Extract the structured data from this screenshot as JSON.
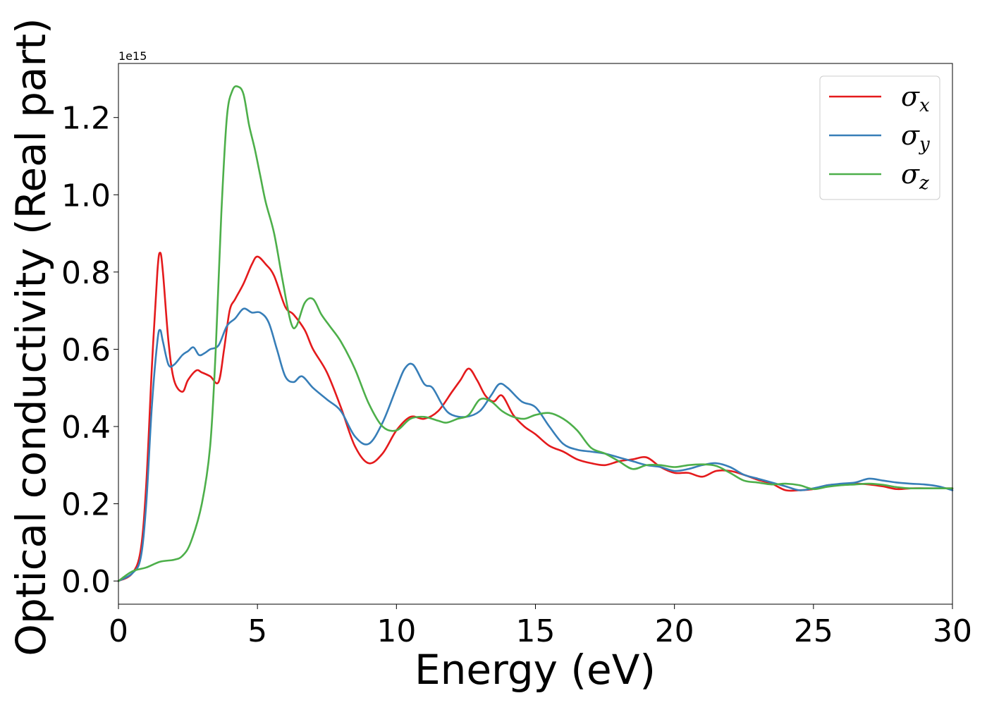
{
  "chart_data": {
    "type": "line",
    "title": "",
    "xlabel": "Energy (eV)",
    "ylabel": "Optical conductivity (Real part)",
    "y_offset_label": "1e15",
    "xlim": [
      0,
      30
    ],
    "ylim": [
      -0.06,
      1.34
    ],
    "xticks": [
      0,
      5,
      10,
      15,
      20,
      25,
      30
    ],
    "xtick_labels": [
      "0",
      "5",
      "10",
      "15",
      "20",
      "25",
      "30"
    ],
    "yticks": [
      0.0,
      0.2,
      0.4,
      0.6,
      0.8,
      1.0,
      1.2
    ],
    "ytick_labels": [
      "0.0",
      "0.2",
      "0.4",
      "0.6",
      "0.8",
      "1.0",
      "1.2"
    ],
    "grid": false,
    "legend_position": "top-right",
    "series": [
      {
        "name": "σx",
        "symbol": "σ",
        "subscript": "x",
        "color": "#e41a1c",
        "x": [
          0,
          0.5,
          0.8,
          1.0,
          1.2,
          1.4,
          1.5,
          1.6,
          1.8,
          2.0,
          2.3,
          2.5,
          2.8,
          3.0,
          3.3,
          3.6,
          3.8,
          4.0,
          4.2,
          4.5,
          4.8,
          5.0,
          5.3,
          5.6,
          6.0,
          6.3,
          6.7,
          7.0,
          7.5,
          8.0,
          8.5,
          9.0,
          9.5,
          10.0,
          10.5,
          11.0,
          11.5,
          12.0,
          12.3,
          12.6,
          12.9,
          13.2,
          13.5,
          13.8,
          14.2,
          14.6,
          15.0,
          15.5,
          16.0,
          16.5,
          17.0,
          17.5,
          18.0,
          18.5,
          19.0,
          19.5,
          20.0,
          20.5,
          21.0,
          21.5,
          22.0,
          22.5,
          23.0,
          23.5,
          24.0,
          24.5,
          25.0,
          25.5,
          26.0,
          26.5,
          27.0,
          27.5,
          28.0,
          28.5,
          29.0,
          29.5,
          30.0
        ],
        "y": [
          0,
          0.02,
          0.08,
          0.25,
          0.55,
          0.8,
          0.85,
          0.8,
          0.62,
          0.52,
          0.49,
          0.52,
          0.545,
          0.54,
          0.53,
          0.515,
          0.6,
          0.7,
          0.73,
          0.77,
          0.82,
          0.84,
          0.82,
          0.79,
          0.71,
          0.69,
          0.65,
          0.6,
          0.54,
          0.45,
          0.35,
          0.305,
          0.33,
          0.39,
          0.425,
          0.42,
          0.44,
          0.49,
          0.52,
          0.55,
          0.52,
          0.48,
          0.465,
          0.48,
          0.43,
          0.4,
          0.38,
          0.35,
          0.335,
          0.315,
          0.305,
          0.3,
          0.31,
          0.315,
          0.32,
          0.295,
          0.28,
          0.28,
          0.27,
          0.285,
          0.285,
          0.275,
          0.262,
          0.252,
          0.235,
          0.235,
          0.238,
          0.248,
          0.25,
          0.252,
          0.25,
          0.245,
          0.238,
          0.24,
          0.24,
          0.24,
          0.24
        ]
      },
      {
        "name": "σy",
        "symbol": "σ",
        "subscript": "y",
        "color": "#377eb8",
        "x": [
          0,
          0.5,
          0.8,
          1.0,
          1.2,
          1.4,
          1.5,
          1.6,
          1.8,
          2.0,
          2.3,
          2.5,
          2.7,
          2.9,
          3.1,
          3.3,
          3.6,
          3.9,
          4.2,
          4.5,
          4.8,
          5.1,
          5.4,
          5.7,
          6.0,
          6.3,
          6.6,
          7.0,
          7.5,
          8.0,
          8.5,
          9.0,
          9.5,
          10.0,
          10.3,
          10.6,
          11.0,
          11.3,
          11.7,
          12.0,
          12.5,
          13.0,
          13.4,
          13.7,
          14.0,
          14.5,
          15.0,
          15.5,
          16.0,
          16.5,
          17.0,
          17.5,
          18.0,
          18.5,
          19.0,
          19.5,
          20.0,
          20.5,
          21.0,
          21.5,
          22.0,
          22.5,
          23.0,
          23.5,
          24.0,
          24.5,
          25.0,
          25.5,
          26.0,
          26.5,
          27.0,
          27.5,
          28.0,
          28.5,
          29.0,
          29.5,
          30.0
        ],
        "y": [
          0,
          0.02,
          0.06,
          0.2,
          0.45,
          0.62,
          0.65,
          0.62,
          0.56,
          0.56,
          0.585,
          0.595,
          0.605,
          0.585,
          0.59,
          0.6,
          0.61,
          0.66,
          0.68,
          0.705,
          0.695,
          0.695,
          0.67,
          0.6,
          0.53,
          0.515,
          0.53,
          0.5,
          0.47,
          0.44,
          0.375,
          0.355,
          0.41,
          0.5,
          0.55,
          0.56,
          0.51,
          0.5,
          0.45,
          0.43,
          0.425,
          0.44,
          0.48,
          0.51,
          0.5,
          0.465,
          0.45,
          0.4,
          0.355,
          0.34,
          0.335,
          0.33,
          0.32,
          0.31,
          0.3,
          0.295,
          0.285,
          0.29,
          0.3,
          0.305,
          0.295,
          0.275,
          0.265,
          0.255,
          0.245,
          0.235,
          0.24,
          0.248,
          0.252,
          0.255,
          0.265,
          0.26,
          0.255,
          0.252,
          0.25,
          0.245,
          0.235
        ]
      },
      {
        "name": "σz",
        "symbol": "σ",
        "subscript": "z",
        "color": "#4daf4a",
        "x": [
          0,
          0.5,
          1.0,
          1.5,
          2.0,
          2.3,
          2.6,
          3.0,
          3.3,
          3.5,
          3.7,
          3.9,
          4.1,
          4.3,
          4.5,
          4.7,
          4.9,
          5.1,
          5.3,
          5.6,
          5.9,
          6.2,
          6.4,
          6.7,
          7.0,
          7.3,
          7.6,
          8.0,
          8.5,
          9.0,
          9.5,
          10.0,
          10.5,
          11.0,
          11.5,
          11.8,
          12.2,
          12.6,
          13.0,
          13.4,
          13.8,
          14.2,
          14.6,
          15.0,
          15.5,
          16.0,
          16.5,
          17.0,
          17.5,
          18.0,
          18.5,
          19.0,
          19.5,
          20.0,
          20.5,
          21.0,
          21.5,
          22.0,
          22.5,
          23.0,
          23.5,
          24.0,
          24.5,
          25.0,
          25.5,
          26.0,
          26.5,
          27.0,
          27.5,
          28.0,
          28.5,
          29.0,
          29.5,
          30.0
        ],
        "y": [
          0,
          0.025,
          0.035,
          0.05,
          0.055,
          0.065,
          0.1,
          0.2,
          0.35,
          0.6,
          0.95,
          1.2,
          1.27,
          1.28,
          1.26,
          1.18,
          1.12,
          1.05,
          0.98,
          0.9,
          0.78,
          0.67,
          0.66,
          0.72,
          0.73,
          0.69,
          0.66,
          0.62,
          0.55,
          0.46,
          0.4,
          0.39,
          0.42,
          0.425,
          0.415,
          0.41,
          0.42,
          0.43,
          0.47,
          0.465,
          0.44,
          0.425,
          0.42,
          0.43,
          0.435,
          0.42,
          0.39,
          0.345,
          0.33,
          0.31,
          0.29,
          0.3,
          0.3,
          0.295,
          0.3,
          0.302,
          0.298,
          0.28,
          0.26,
          0.255,
          0.25,
          0.252,
          0.248,
          0.238,
          0.244,
          0.248,
          0.25,
          0.252,
          0.249,
          0.243,
          0.24,
          0.24,
          0.24,
          0.24
        ]
      }
    ]
  }
}
